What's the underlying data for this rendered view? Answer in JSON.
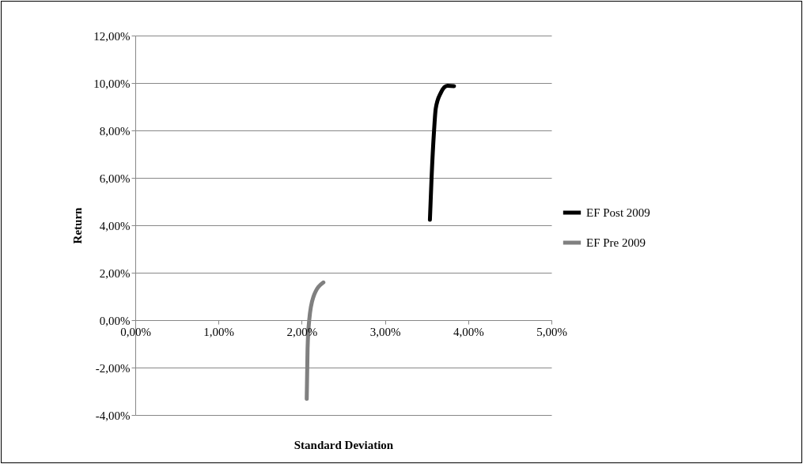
{
  "chart_data": {
    "type": "line",
    "xlabel": "Standard Deviation",
    "ylabel": "Return",
    "xlim": [
      0,
      5
    ],
    "ylim": [
      -4,
      12
    ],
    "xticks": [
      {
        "value": 0,
        "label": "0,00%"
      },
      {
        "value": 1,
        "label": "1,00%"
      },
      {
        "value": 2,
        "label": "2,00%"
      },
      {
        "value": 3,
        "label": "3,00%"
      },
      {
        "value": 4,
        "label": "4,00%"
      },
      {
        "value": 5,
        "label": "5,00%"
      }
    ],
    "yticks": [
      {
        "value": -4,
        "label": "-4,00%"
      },
      {
        "value": -2,
        "label": "-2,00%"
      },
      {
        "value": 0,
        "label": "0,00%"
      },
      {
        "value": 2,
        "label": "2,00%"
      },
      {
        "value": 4,
        "label": "4,00%"
      },
      {
        "value": 6,
        "label": "6,00%"
      },
      {
        "value": 8,
        "label": "8,00%"
      },
      {
        "value": 10,
        "label": "10,00%"
      },
      {
        "value": 12,
        "label": "12,00%"
      }
    ],
    "grid": "y",
    "legend": "right",
    "marker": "none",
    "line_style": "solid",
    "series": [
      {
        "name": "EF Post 2009",
        "color": "#000000",
        "x": [
          3.54,
          3.56,
          3.59,
          3.61,
          3.67,
          3.75,
          3.83
        ],
        "values": [
          4.23,
          6,
          8,
          8.92,
          9.58,
          9.88,
          9.87
        ]
      },
      {
        "name": "EF Pre 2009",
        "color": "#808080",
        "x": [
          2.06,
          2.07,
          2.09,
          2.14,
          2.26
        ],
        "values": [
          -3.32,
          -1.22,
          0,
          0.98,
          1.59
        ]
      }
    ]
  }
}
